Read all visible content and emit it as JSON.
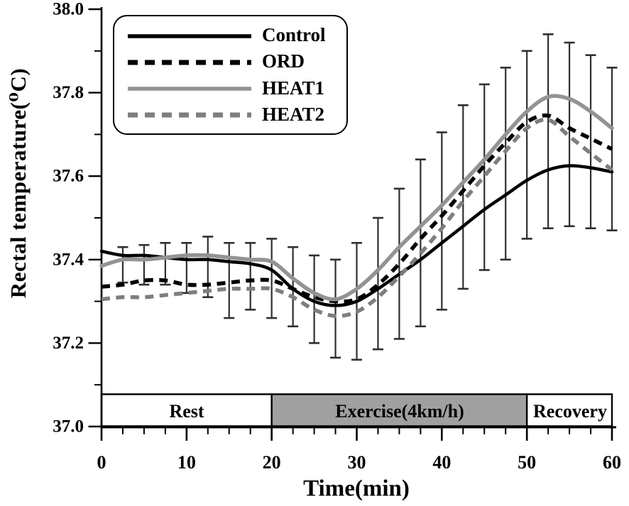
{
  "chart_data": {
    "type": "line",
    "title": "",
    "xlabel": "Time(min)",
    "ylabel": "Rectal temperature(⁰C)",
    "xlim": [
      0,
      60
    ],
    "ylim": [
      37.0,
      38.0
    ],
    "x_major_ticks": [
      0,
      10,
      20,
      30,
      40,
      50,
      60
    ],
    "x_minor_tick_step": 2.5,
    "y_major_ticks": [
      37.0,
      37.2,
      37.4,
      37.6,
      37.8,
      38.0
    ],
    "y_minor_tick_step": 0.1,
    "grid": false,
    "legend_position": "top-left",
    "x": [
      0,
      2.5,
      5,
      7.5,
      10,
      12.5,
      15,
      17.5,
      20,
      22.5,
      25,
      27.5,
      30,
      32.5,
      35,
      37.5,
      40,
      42.5,
      45,
      47.5,
      50,
      52.5,
      55,
      57.5,
      60
    ],
    "series": [
      {
        "name": "Control",
        "line": "solid",
        "color": "#000000",
        "width": 4.5,
        "values": [
          37.42,
          37.41,
          37.41,
          37.405,
          37.4,
          37.4,
          37.395,
          37.39,
          37.375,
          37.33,
          37.3,
          37.29,
          37.3,
          37.33,
          37.365,
          37.4,
          37.44,
          37.48,
          37.52,
          37.555,
          37.59,
          37.615,
          37.625,
          37.62,
          37.61
        ]
      },
      {
        "name": "ORD",
        "line": "dashed",
        "color": "#000000",
        "width": 5.5,
        "values": [
          37.335,
          37.34,
          37.35,
          37.35,
          37.34,
          37.34,
          37.345,
          37.35,
          37.35,
          37.33,
          37.31,
          37.3,
          37.305,
          37.34,
          37.39,
          37.45,
          37.505,
          37.565,
          37.625,
          37.68,
          37.73,
          37.745,
          37.715,
          37.69,
          37.665
        ]
      },
      {
        "name": "HEAT1",
        "line": "solid",
        "color": "#939393",
        "width": 5.5,
        "values": [
          37.385,
          37.4,
          37.4,
          37.405,
          37.41,
          37.41,
          37.405,
          37.4,
          37.395,
          37.355,
          37.32,
          37.305,
          37.33,
          37.375,
          37.43,
          37.48,
          37.53,
          37.585,
          37.64,
          37.7,
          37.755,
          37.79,
          37.785,
          37.755,
          37.715
        ]
      },
      {
        "name": "HEAT2",
        "line": "dashed",
        "color": "#7e7e7e",
        "width": 5.5,
        "values": [
          37.305,
          37.31,
          37.31,
          37.315,
          37.32,
          37.325,
          37.33,
          37.33,
          37.33,
          37.31,
          37.28,
          37.265,
          37.275,
          37.31,
          37.36,
          37.415,
          37.475,
          37.54,
          37.6,
          37.66,
          37.715,
          37.735,
          37.695,
          37.655,
          37.615
        ]
      }
    ],
    "error_bars": {
      "color": "#2f2f2f",
      "x": [
        2.5,
        5,
        7.5,
        10,
        12.5,
        15,
        17.5,
        20,
        22.5,
        25,
        27.5,
        30,
        32.5,
        35,
        37.5,
        40,
        42.5,
        45,
        47.5,
        50,
        52.5,
        55,
        57.5,
        60
      ],
      "low": [
        37.345,
        37.34,
        37.34,
        37.32,
        37.31,
        37.26,
        37.28,
        37.26,
        37.24,
        37.2,
        37.165,
        37.16,
        37.185,
        37.21,
        37.24,
        37.28,
        37.33,
        37.375,
        37.4,
        37.45,
        37.475,
        37.48,
        37.475,
        37.47
      ],
      "high": [
        37.43,
        37.435,
        37.44,
        37.44,
        37.455,
        37.44,
        37.44,
        37.45,
        37.43,
        37.41,
        37.4,
        37.44,
        37.5,
        37.57,
        37.64,
        37.705,
        37.77,
        37.82,
        37.86,
        37.9,
        37.94,
        37.92,
        37.89,
        37.86
      ]
    },
    "phases": [
      {
        "label": "Rest",
        "start": 0,
        "end": 20,
        "fill": "#ffffff"
      },
      {
        "label": "Exercise(4km/h)",
        "start": 20,
        "end": 50,
        "fill": "#a0a0a0"
      },
      {
        "label": "Recovery",
        "start": 50,
        "end": 60,
        "fill": "#ffffff"
      }
    ],
    "colors": {
      "axis": "#000000",
      "tick_label": "#000000",
      "band_border": "#000000"
    }
  }
}
